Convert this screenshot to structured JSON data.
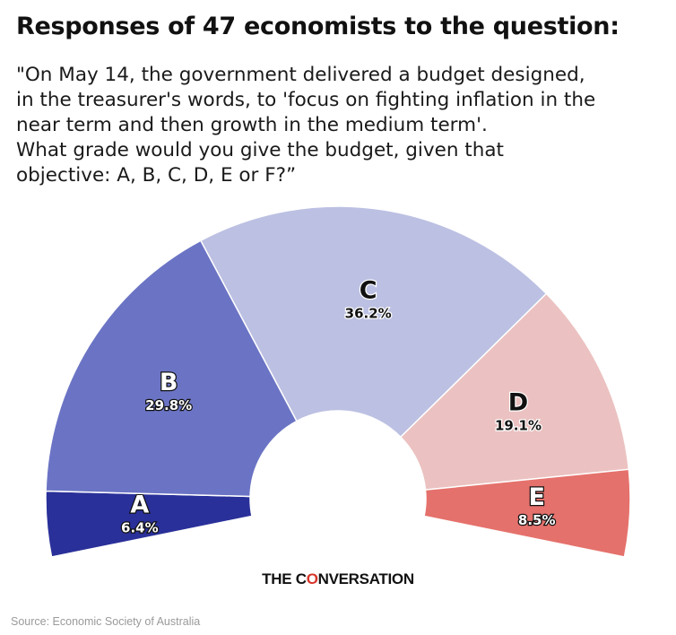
{
  "header": {
    "title": "Responses of 47 economists to the question:",
    "question_lines": [
      "\"On May 14, the government delivered a budget designed,",
      "in the treasurer's words, to 'focus on fighting inflation in the",
      "near term and then growth in the medium term'.",
      "What grade would you give the budget, given that",
      "objective: A, B, C, D, E or F?”"
    ]
  },
  "chart_data": {
    "type": "pie",
    "variant": "semicircle-donut",
    "categories": [
      "A",
      "B",
      "C",
      "D",
      "E"
    ],
    "values": [
      6.4,
      29.8,
      36.2,
      19.1,
      8.5
    ],
    "value_labels": [
      "6.4%",
      "29.8%",
      "36.2%",
      "19.1%",
      "8.5%"
    ],
    "colors": [
      "#2a3099",
      "#6b74c4",
      "#bcc0e2",
      "#ebc2c1",
      "#e5716c"
    ],
    "label_colors": [
      "#ffffff",
      "#ffffff",
      "#111111",
      "#111111",
      "#ffffff"
    ]
  },
  "footer": {
    "brand_before": "THE C",
    "brand_accent": "O",
    "brand_after": "NVERSATION",
    "source": "Source: Economic Society of Australia"
  }
}
